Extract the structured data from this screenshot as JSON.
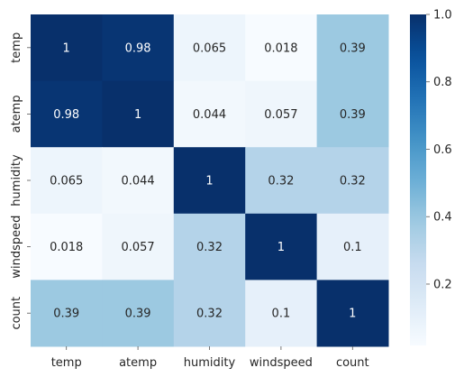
{
  "chart_data": {
    "type": "heatmap",
    "title": "",
    "xlabel": "",
    "ylabel": "",
    "x_categories": [
      "temp",
      "atemp",
      "humidity",
      "windspeed",
      "count"
    ],
    "y_categories": [
      "temp",
      "atemp",
      "humidity",
      "windspeed",
      "count"
    ],
    "values": [
      [
        1,
        0.98,
        0.065,
        0.018,
        0.39
      ],
      [
        0.98,
        1,
        0.044,
        0.057,
        0.39
      ],
      [
        0.065,
        0.044,
        1,
        0.32,
        0.32
      ],
      [
        0.018,
        0.057,
        0.32,
        1,
        0.1
      ],
      [
        0.39,
        0.39,
        0.32,
        0.1,
        1
      ]
    ],
    "annotations": [
      [
        "1",
        "0.98",
        "0.065",
        "0.018",
        "0.39"
      ],
      [
        "0.98",
        "1",
        "0.044",
        "0.057",
        "0.39"
      ],
      [
        "0.065",
        "0.044",
        "1",
        "0.32",
        "0.32"
      ],
      [
        "0.018",
        "0.057",
        "0.32",
        "1",
        "0.1"
      ],
      [
        "0.39",
        "0.39",
        "0.32",
        "0.1",
        "1"
      ]
    ],
    "colormap": "Blues",
    "color_range": [
      0.018,
      1
    ],
    "colorbar": {
      "ticks": [
        0.2,
        0.4,
        0.6,
        0.8,
        1.0
      ],
      "tick_labels": [
        "0.2",
        "0.4",
        "0.6",
        "0.8",
        "1.0"
      ]
    }
  }
}
